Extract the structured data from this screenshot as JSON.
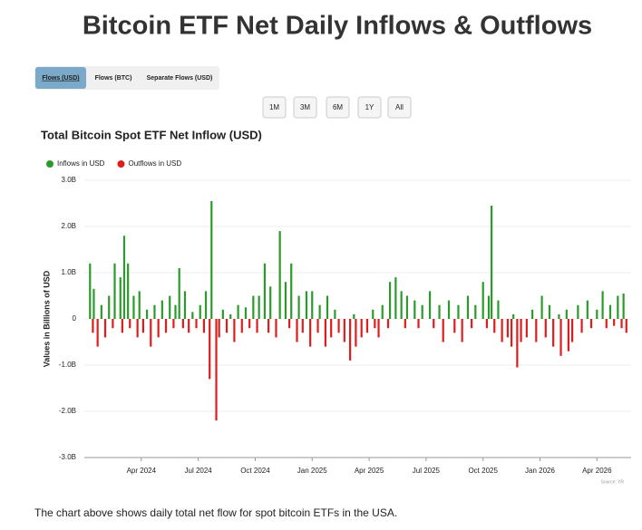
{
  "page_title": "Bitcoin ETF Net Daily Inflows & Outflows",
  "tabs": [
    "Flows (USD)",
    "Flows (BTC)",
    "Separate Flows (USD)"
  ],
  "range_buttons": [
    "1M",
    "3M",
    "6M",
    "1Y",
    "All"
  ],
  "footer": "The chart above shows daily total net flow for spot bitcoin ETFs in the USA.",
  "chart_data": {
    "type": "bar",
    "title": "Total Bitcoin Spot ETF Net Inflow (USD)",
    "y_label": "Values in Billions of USD",
    "source": "Source: YR",
    "legend": "top-left",
    "grid": true,
    "xlim": [
      0,
      28.8
    ],
    "xticks": [
      {
        "value": 3,
        "label": "Apr 2024"
      },
      {
        "value": 6,
        "label": "Jul 2024"
      },
      {
        "value": 9,
        "label": "Oct 2024"
      },
      {
        "value": 12,
        "label": "Jan 2025"
      },
      {
        "value": 15,
        "label": "Apr 2025"
      },
      {
        "value": 18,
        "label": "Jul 2025"
      },
      {
        "value": 21,
        "label": "Oct 2025"
      },
      {
        "value": 24,
        "label": "Jan 2026"
      },
      {
        "value": 27,
        "label": "Apr 2026"
      }
    ],
    "ylim": [
      -3,
      3
    ],
    "yticks": [
      {
        "value": 3,
        "label": "3.0B"
      },
      {
        "value": 2,
        "label": "2.0B"
      },
      {
        "value": 1,
        "label": "1.0B"
      },
      0,
      {
        "value": -1,
        "label": "-1.0B"
      },
      {
        "value": -2,
        "label": "-2.0B"
      },
      {
        "value": -3,
        "label": "-3.0B"
      }
    ],
    "series": [
      {
        "name": "Inflows in USD",
        "color": "#2a9a2a",
        "x": [
          0.3,
          0.5,
          0.9,
          1.3,
          1.6,
          1.9,
          2.1,
          2.3,
          2.6,
          2.9,
          3.3,
          3.7,
          4.1,
          4.5,
          4.8,
          5.0,
          5.3,
          5.7,
          6.1,
          6.4,
          6.7,
          7.3,
          7.7,
          8.1,
          8.5,
          8.9,
          9.2,
          9.5,
          9.8,
          10.3,
          10.6,
          10.9,
          11.3,
          11.7,
          12.0,
          12.4,
          12.8,
          13.2,
          14.2,
          15.2,
          15.7,
          16.1,
          16.4,
          16.7,
          17.0,
          17.4,
          17.8,
          18.2,
          18.7,
          19.2,
          19.7,
          20.2,
          20.6,
          21.0,
          21.3,
          21.45,
          21.8,
          22.6,
          23.6,
          24.1,
          24.5,
          25.0,
          25.4,
          26.0,
          26.5,
          27.0,
          27.3,
          27.7,
          28.1,
          28.4
        ],
        "values": [
          1.2,
          0.65,
          0.3,
          0.5,
          1.2,
          0.9,
          1.8,
          1.2,
          0.5,
          0.6,
          0.2,
          0.3,
          0.4,
          0.5,
          0.3,
          1.1,
          0.6,
          0.15,
          0.3,
          0.6,
          2.55,
          0.2,
          0.1,
          0.3,
          0.25,
          0.5,
          0.5,
          1.2,
          0.7,
          1.9,
          0.8,
          1.2,
          0.5,
          0.6,
          0.6,
          0.3,
          0.5,
          0.2,
          0.1,
          0.2,
          0.3,
          0.8,
          0.9,
          0.6,
          0.5,
          0.4,
          0.3,
          0.6,
          0.3,
          0.4,
          0.3,
          0.5,
          0.3,
          0.8,
          0.5,
          2.45,
          0.4,
          0.1,
          0.2,
          0.5,
          0.3,
          0.1,
          0.2,
          0.3,
          0.4,
          0.2,
          0.6,
          0.3,
          0.5,
          0.55
        ]
      },
      {
        "name": "Outflows in USD",
        "color": "#e01b1b",
        "x": [
          0.45,
          0.7,
          1.1,
          1.5,
          2.0,
          2.4,
          2.8,
          3.1,
          3.5,
          3.9,
          4.3,
          4.7,
          5.2,
          5.5,
          5.9,
          6.3,
          6.6,
          6.95,
          7.1,
          7.5,
          7.9,
          8.3,
          8.7,
          9.1,
          9.7,
          10.1,
          10.8,
          11.2,
          11.5,
          11.9,
          12.3,
          12.7,
          13.0,
          13.4,
          13.7,
          14.0,
          14.3,
          14.6,
          14.9,
          15.3,
          15.5,
          16.0,
          16.9,
          17.6,
          18.4,
          18.9,
          19.5,
          19.9,
          20.4,
          21.2,
          21.6,
          22.0,
          22.3,
          22.5,
          22.8,
          23.0,
          23.3,
          23.8,
          24.3,
          24.7,
          25.1,
          25.5,
          25.7,
          26.2,
          26.7,
          27.5,
          27.9,
          28.3,
          28.55
        ],
        "values": [
          -0.3,
          -0.6,
          -0.4,
          -0.2,
          -0.3,
          -0.2,
          -0.4,
          -0.3,
          -0.6,
          -0.4,
          -0.3,
          -0.2,
          -0.2,
          -0.3,
          -0.2,
          -0.3,
          -1.3,
          -2.2,
          -0.4,
          -0.3,
          -0.5,
          -0.3,
          -0.2,
          -0.3,
          -0.3,
          -0.4,
          -0.2,
          -0.5,
          -0.3,
          -0.6,
          -0.3,
          -0.6,
          -0.4,
          -0.3,
          -0.5,
          -0.9,
          -0.6,
          -0.4,
          -0.3,
          -0.2,
          -0.4,
          -0.2,
          -0.2,
          -0.2,
          -0.2,
          -0.5,
          -0.3,
          -0.5,
          -0.2,
          -0.2,
          -0.3,
          -0.5,
          -0.4,
          -0.6,
          -1.05,
          -0.5,
          -0.4,
          -0.5,
          -0.4,
          -0.6,
          -0.8,
          -0.7,
          -0.5,
          -0.3,
          -0.2,
          -0.2,
          -0.15,
          -0.2,
          -0.3
        ]
      }
    ]
  }
}
